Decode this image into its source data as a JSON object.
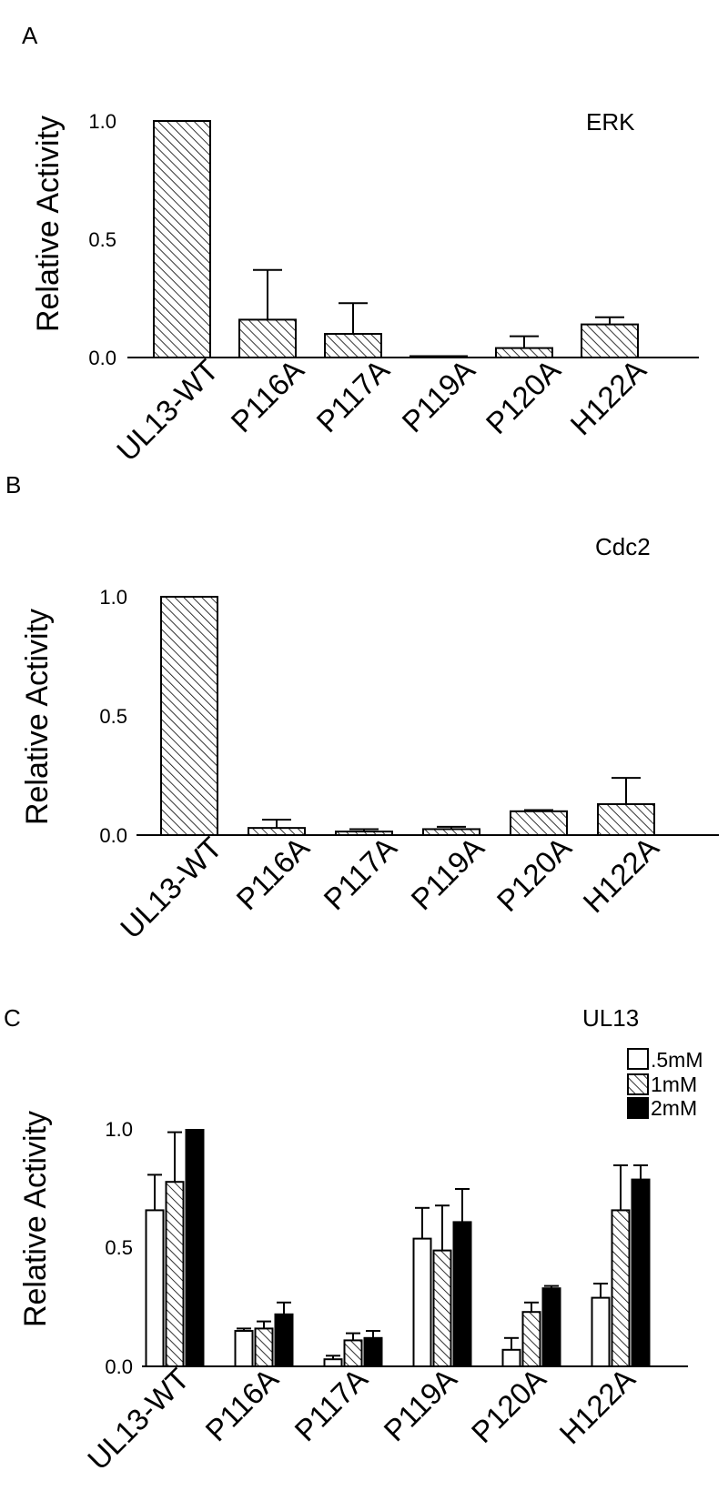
{
  "chart_data": [
    {
      "type": "bar",
      "panel": "A",
      "title": "ERK",
      "ylabel": "Relative Activity",
      "ylim": [
        0,
        1.0
      ],
      "yticks": [
        "0.0",
        "0.5",
        "1.0"
      ],
      "categories": [
        "UL13-WT",
        "P116A",
        "P117A",
        "P119A",
        "P120A",
        "H122A"
      ],
      "series": [
        {
          "values": [
            1.0,
            0.16,
            0.1,
            0.0,
            0.04,
            0.14
          ],
          "errors": [
            0.0,
            0.21,
            0.13,
            0.0,
            0.05,
            0.03
          ]
        }
      ]
    },
    {
      "type": "bar",
      "panel": "B",
      "title": "Cdc2",
      "ylabel": "Relative Activity",
      "ylim": [
        0,
        1.0
      ],
      "yticks": [
        "0.0",
        "0.5",
        "1.0"
      ],
      "categories": [
        "UL13-WT",
        "P116A",
        "P117A",
        "P119A",
        "P120A",
        "H122A"
      ],
      "series": [
        {
          "values": [
            1.0,
            0.03,
            0.015,
            0.025,
            0.1,
            0.13
          ],
          "errors": [
            0.0,
            0.035,
            0.01,
            0.01,
            0.005,
            0.11
          ]
        }
      ]
    },
    {
      "type": "bar",
      "panel": "C",
      "title": "UL13",
      "ylabel": "Relative Activity",
      "ylim": [
        0,
        1.0
      ],
      "yticks": [
        "0.0",
        "0.5",
        "1.0"
      ],
      "legend_position": "top-right",
      "categories": [
        "UL13-WT",
        "P116A",
        "P117A",
        "P119A",
        "P120A",
        "H122A"
      ],
      "series": [
        {
          "name": ".5mM",
          "fill": "white",
          "values": [
            0.66,
            0.15,
            0.03,
            0.54,
            0.07,
            0.29
          ],
          "errors": [
            0.15,
            0.01,
            0.015,
            0.13,
            0.05,
            0.06
          ]
        },
        {
          "name": "1mM",
          "fill": "hatched",
          "values": [
            0.78,
            0.16,
            0.11,
            0.49,
            0.23,
            0.66
          ],
          "errors": [
            0.21,
            0.03,
            0.03,
            0.19,
            0.04,
            0.19
          ]
        },
        {
          "name": "2mM",
          "fill": "black",
          "values": [
            1.0,
            0.22,
            0.12,
            0.61,
            0.33,
            0.79
          ],
          "errors": [
            0.0,
            0.05,
            0.03,
            0.14,
            0.01,
            0.06
          ]
        }
      ]
    }
  ]
}
